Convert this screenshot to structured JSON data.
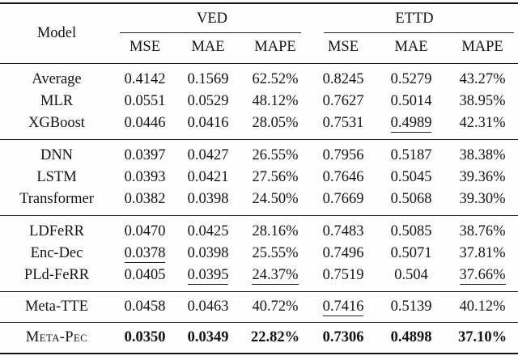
{
  "table": {
    "model_header": "Model",
    "groups": [
      {
        "label": "VED",
        "metrics": [
          "MSE",
          "MAE",
          "MAPE"
        ]
      },
      {
        "label": "ETTD",
        "metrics": [
          "MSE",
          "MAE",
          "MAPE"
        ]
      }
    ],
    "sections": [
      {
        "rows": [
          {
            "model": "Average",
            "values": [
              "0.4142",
              "0.1569",
              "62.52%",
              "0.8245",
              "0.5279",
              "43.27%"
            ],
            "underline": []
          },
          {
            "model": "MLR",
            "values": [
              "0.0551",
              "0.0529",
              "48.12%",
              "0.7627",
              "0.5014",
              "38.95%"
            ],
            "underline": []
          },
          {
            "model": "XGBoost",
            "values": [
              "0.0446",
              "0.0416",
              "28.05%",
              "0.7531",
              "0.4989",
              "42.31%"
            ],
            "underline": [
              4
            ]
          }
        ]
      },
      {
        "rows": [
          {
            "model": "DNN",
            "values": [
              "0.0397",
              "0.0427",
              "26.55%",
              "0.7956",
              "0.5187",
              "38.38%"
            ],
            "underline": []
          },
          {
            "model": "LSTM",
            "values": [
              "0.0393",
              "0.0421",
              "27.56%",
              "0.7646",
              "0.5045",
              "39.36%"
            ],
            "underline": []
          },
          {
            "model": "Transformer",
            "values": [
              "0.0382",
              "0.0398",
              "24.50%",
              "0.7669",
              "0.5068",
              "39.30%"
            ],
            "underline": []
          }
        ]
      },
      {
        "rows": [
          {
            "model": "LDFeRR",
            "values": [
              "0.0470",
              "0.0425",
              "28.16%",
              "0.7483",
              "0.5085",
              "38.76%"
            ],
            "underline": []
          },
          {
            "model": "Enc-Dec",
            "values": [
              "0.0378",
              "0.0398",
              "25.55%",
              "0.7496",
              "0.5071",
              "37.81%"
            ],
            "underline": [
              0
            ]
          },
          {
            "model": "PLd-FeRR",
            "values": [
              "0.0405",
              "0.0395",
              "24.37%",
              "0.7519",
              "0.504",
              "37.66%"
            ],
            "underline": [
              1,
              2,
              5
            ]
          }
        ]
      },
      {
        "single": true,
        "rows": [
          {
            "model": "Meta-TTE",
            "values": [
              "0.0458",
              "0.0463",
              "40.72%",
              "0.7416",
              "0.5139",
              "40.12%"
            ],
            "underline": [
              3
            ]
          }
        ]
      },
      {
        "single": true,
        "final": true,
        "rows": [
          {
            "model": "Meta-Pec",
            "smallcaps": true,
            "bold": true,
            "values": [
              "0.0350",
              "0.0349",
              "22.82%",
              "0.7306",
              "0.4898",
              "37.10%"
            ],
            "underline": []
          }
        ]
      }
    ]
  }
}
